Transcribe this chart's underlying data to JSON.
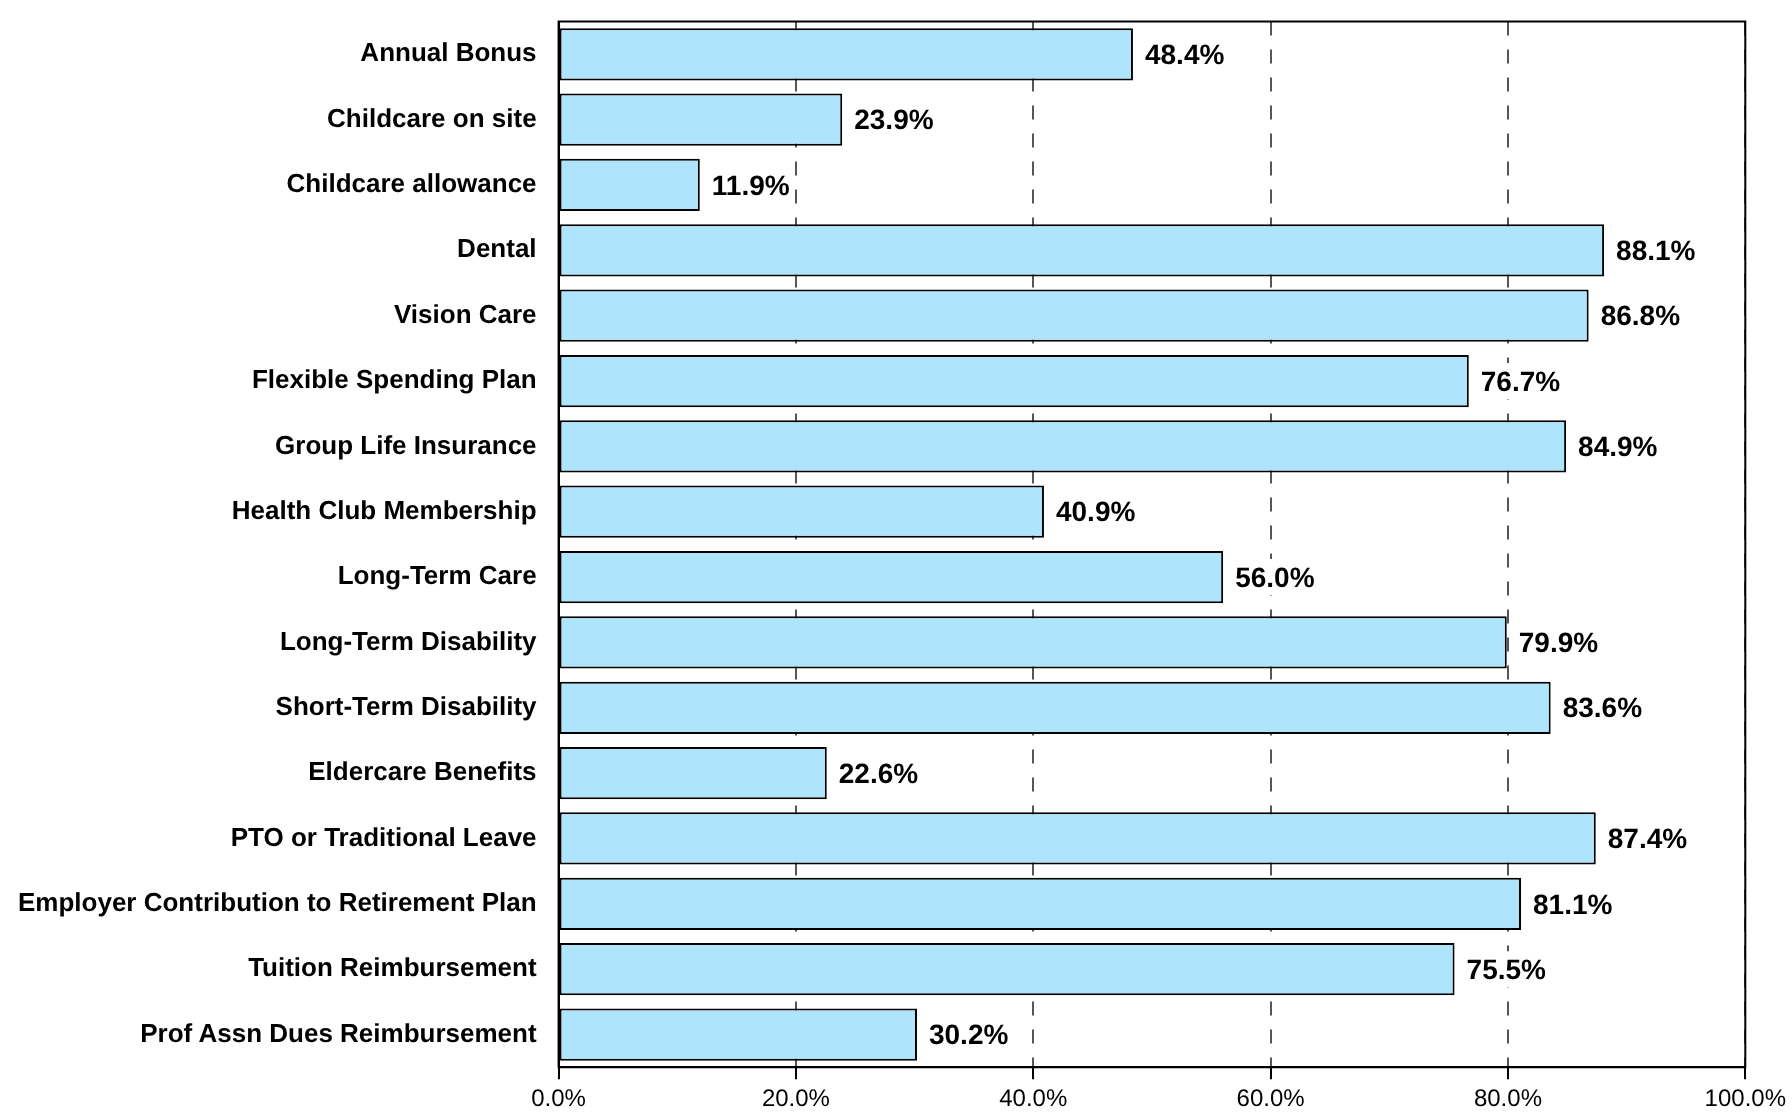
{
  "chart_data": {
    "type": "bar",
    "orientation": "horizontal",
    "categories": [
      "Annual Bonus",
      "Childcare on site",
      "Childcare allowance",
      "Dental",
      "Vision Care",
      "Flexible Spending Plan",
      "Group Life Insurance",
      "Health Club Membership",
      "Long-Term Care",
      "Long-Term Disability",
      "Short-Term Disability",
      "Eldercare Benefits",
      "PTO or Traditional Leave",
      "Employer Contribution to Retirement Plan",
      "Tuition Reimbursement",
      "Prof Assn Dues Reimbursement"
    ],
    "values": [
      48.4,
      23.9,
      11.9,
      88.1,
      86.8,
      76.7,
      84.9,
      40.9,
      56.0,
      79.9,
      83.6,
      22.6,
      87.4,
      81.1,
      75.5,
      30.2
    ],
    "value_labels": [
      "48.4%",
      "23.9%",
      "11.9%",
      "88.1%",
      "86.8%",
      "76.7%",
      "84.9%",
      "40.9%",
      "56.0%",
      "79.9%",
      "83.6%",
      "22.6%",
      "87.4%",
      "81.1%",
      "75.5%",
      "30.2%"
    ],
    "color": "#aee4fc",
    "xlim": [
      0,
      100
    ],
    "xticks": [
      {
        "value": 0,
        "label": "0.0%"
      },
      {
        "value": 20,
        "label": "20.0%"
      },
      {
        "value": 40,
        "label": "40.0%"
      },
      {
        "value": 60,
        "label": "60.0%"
      },
      {
        "value": 80,
        "label": "80.0%"
      },
      {
        "value": 100,
        "label": "100.0%"
      }
    ],
    "grid": "x",
    "legend": false
  }
}
